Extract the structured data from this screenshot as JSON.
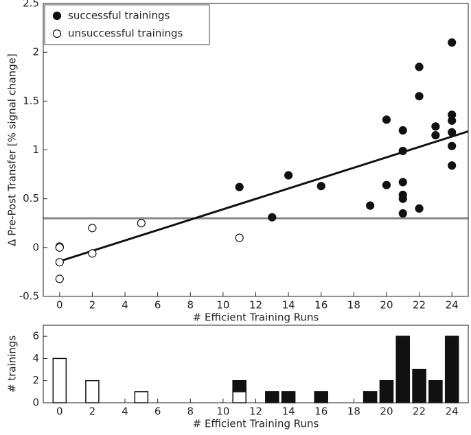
{
  "chart_data": [
    {
      "type": "scatter",
      "xlabel": "# Efficient Training Runs",
      "ylabel": "Δ Pre-Post Transfer [% signal change]",
      "xlim": [
        -1,
        25
      ],
      "ylim": [
        -0.5,
        2.5
      ],
      "xticks": [
        0,
        2,
        4,
        6,
        8,
        10,
        12,
        14,
        16,
        18,
        20,
        22,
        24
      ],
      "yticks": [
        -0.5,
        0,
        0.5,
        1,
        1.5,
        2,
        2.5
      ],
      "legend": "upper left",
      "series": [
        {
          "name": "successful trainings",
          "color": "#111111",
          "filled": true,
          "x": [
            11,
            13,
            14,
            16,
            19,
            20,
            20,
            21,
            21,
            21,
            21,
            21,
            21,
            22,
            22,
            22,
            23,
            23,
            24,
            24,
            24,
            24,
            24,
            24
          ],
          "values": [
            0.62,
            0.31,
            0.74,
            0.63,
            0.43,
            1.31,
            0.64,
            1.2,
            0.99,
            0.67,
            0.54,
            0.5,
            0.35,
            1.85,
            1.55,
            0.4,
            1.24,
            1.15,
            2.1,
            1.36,
            1.3,
            1.18,
            1.04,
            0.84
          ]
        },
        {
          "name": "unsuccessful trainings",
          "color": "#111111",
          "filled": false,
          "x": [
            0,
            0,
            0,
            0,
            2,
            2,
            5,
            11
          ],
          "values": [
            0.01,
            0.0,
            -0.15,
            -0.32,
            0.2,
            -0.06,
            0.25,
            0.1
          ]
        }
      ],
      "fit_line": {
        "color": "#111111",
        "x": [
          0,
          25
        ],
        "values": [
          -0.14,
          1.19
        ]
      },
      "reference_line": {
        "value": 0.3,
        "color": "#888888"
      }
    },
    {
      "type": "bar",
      "xlabel": "# Efficient Training Runs",
      "ylabel": "# trainings",
      "xlim": [
        -1,
        25
      ],
      "ylim": [
        0,
        7
      ],
      "xticks": [
        0,
        2,
        4,
        6,
        8,
        10,
        12,
        14,
        16,
        18,
        20,
        22,
        24
      ],
      "yticks": [
        0,
        2,
        4,
        6
      ],
      "stacked": true,
      "x": [
        0,
        2,
        5,
        11,
        13,
        14,
        16,
        19,
        20,
        21,
        22,
        23,
        24
      ],
      "series": [
        {
          "name": "unsuccessful trainings",
          "color": "#ffffff",
          "values": [
            4,
            2,
            1,
            1,
            0,
            0,
            0,
            0,
            0,
            0,
            0,
            0,
            0
          ]
        },
        {
          "name": "successful trainings",
          "color": "#111111",
          "values": [
            0,
            0,
            0,
            1,
            1,
            1,
            1,
            1,
            2,
            6,
            3,
            2,
            6
          ]
        }
      ]
    }
  ]
}
